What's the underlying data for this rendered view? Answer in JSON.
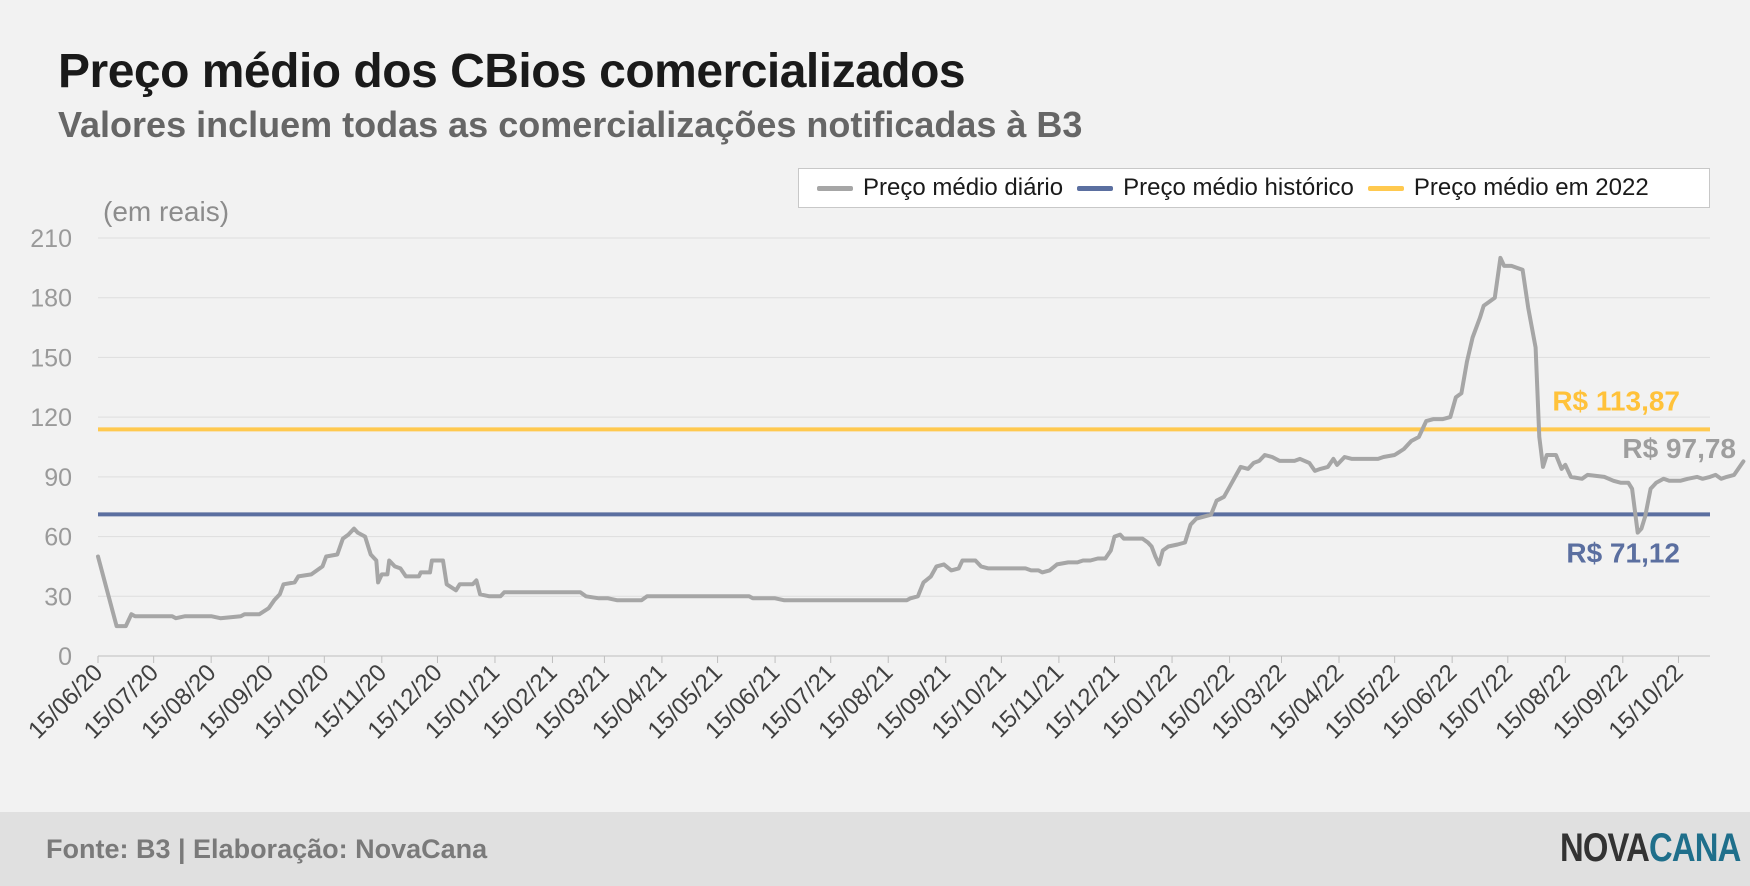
{
  "header": {
    "title": "Preço médio dos CBios comercializados",
    "subtitle": "Valores incluem todas as comercializações notificadas à B3"
  },
  "units_label": "(em reais)",
  "footer": {
    "source": "Fonte: B3 | Elaboração: NovaCana",
    "logo_part1": "NOVA",
    "logo_part2": "CANA"
  },
  "colors": {
    "daily": "#a6a6a6",
    "historical": "#5b6fa0",
    "year2022": "#ffc94f",
    "logo_dark": "#333333",
    "logo_teal": "#1f6f8b"
  },
  "chart_data": {
    "type": "line",
    "title": "Preço médio dos CBios comercializados",
    "subtitle": "Valores incluem todas as comercializações notificadas à B3",
    "ylabel": "(em reais)",
    "xlabel": "",
    "ylim": [
      0,
      210
    ],
    "yticks": [
      0,
      30,
      60,
      90,
      120,
      150,
      180,
      210
    ],
    "xlim": [
      "2020-06-15",
      "2022-11-01"
    ],
    "xtick_labels": [
      "15/06/20",
      "15/07/20",
      "15/08/20",
      "15/09/20",
      "15/10/20",
      "15/11/20",
      "15/12/20",
      "15/01/21",
      "15/02/21",
      "15/03/21",
      "15/04/21",
      "15/05/21",
      "15/06/21",
      "15/07/21",
      "15/08/21",
      "15/09/21",
      "15/10/21",
      "15/11/21",
      "15/12/21",
      "15/01/22",
      "15/02/22",
      "15/03/22",
      "15/04/22",
      "15/05/22",
      "15/06/22",
      "15/07/22",
      "15/08/22",
      "15/09/22",
      "15/10/22"
    ],
    "grid": true,
    "legend_placement": "top-right",
    "legend": [
      "Preço médio diário",
      "Preço médio histórico",
      "Preço médio em 2022"
    ],
    "series": [
      {
        "name": "Preço médio diário",
        "points": [
          [
            "2020-06-15",
            50
          ],
          [
            "2020-06-25",
            15
          ],
          [
            "2020-06-30",
            15
          ],
          [
            "2020-07-03",
            21
          ],
          [
            "2020-07-05",
            20
          ],
          [
            "2020-07-25",
            20
          ],
          [
            "2020-07-27",
            19
          ],
          [
            "2020-08-01",
            20
          ],
          [
            "2020-08-08",
            20
          ],
          [
            "2020-08-15",
            20
          ],
          [
            "2020-08-20",
            19
          ],
          [
            "2020-08-31",
            20
          ],
          [
            "2020-09-02",
            21
          ],
          [
            "2020-09-10",
            21
          ],
          [
            "2020-09-15",
            24
          ],
          [
            "2020-09-18",
            28
          ],
          [
            "2020-09-21",
            31
          ],
          [
            "2020-09-23",
            36
          ],
          [
            "2020-09-29",
            37
          ],
          [
            "2020-10-01",
            40
          ],
          [
            "2020-10-08",
            41
          ],
          [
            "2020-10-14",
            45
          ],
          [
            "2020-10-16",
            50
          ],
          [
            "2020-10-22",
            51
          ],
          [
            "2020-10-25",
            59
          ],
          [
            "2020-10-28",
            61
          ],
          [
            "2020-10-31",
            64
          ],
          [
            "2020-11-02",
            62
          ],
          [
            "2020-11-06",
            60
          ],
          [
            "2020-11-09",
            51
          ],
          [
            "2020-11-12",
            48
          ],
          [
            "2020-11-13",
            37
          ],
          [
            "2020-11-15",
            41
          ],
          [
            "2020-11-18",
            41
          ],
          [
            "2020-11-19",
            48
          ],
          [
            "2020-11-22",
            45
          ],
          [
            "2020-11-25",
            44
          ],
          [
            "2020-11-28",
            40
          ],
          [
            "2020-12-05",
            40
          ],
          [
            "2020-12-06",
            42
          ],
          [
            "2020-12-11",
            42
          ],
          [
            "2020-12-12",
            48
          ],
          [
            "2020-12-18",
            48
          ],
          [
            "2020-12-20",
            36
          ],
          [
            "2020-12-25",
            33
          ],
          [
            "2020-12-27",
            36
          ],
          [
            "2021-01-03",
            36
          ],
          [
            "2021-01-05",
            38
          ],
          [
            "2021-01-07",
            31
          ],
          [
            "2021-01-12",
            30
          ],
          [
            "2021-01-18",
            30
          ],
          [
            "2021-01-20",
            32
          ],
          [
            "2021-03-02",
            32
          ],
          [
            "2021-03-05",
            30
          ],
          [
            "2021-03-12",
            29
          ],
          [
            "2021-03-17",
            29
          ],
          [
            "2021-03-22",
            28
          ],
          [
            "2021-04-04",
            28
          ],
          [
            "2021-04-07",
            30
          ],
          [
            "2021-04-10",
            30
          ],
          [
            "2021-04-17",
            30
          ],
          [
            "2021-04-20",
            30
          ],
          [
            "2021-05-01",
            30
          ],
          [
            "2021-05-05",
            30
          ],
          [
            "2021-06-01",
            30
          ],
          [
            "2021-06-03",
            29
          ],
          [
            "2021-06-15",
            29
          ],
          [
            "2021-06-20",
            28
          ],
          [
            "2021-08-25",
            28
          ],
          [
            "2021-08-27",
            29
          ],
          [
            "2021-08-31",
            30
          ],
          [
            "2021-09-03",
            37
          ],
          [
            "2021-09-07",
            40
          ],
          [
            "2021-09-10",
            45
          ],
          [
            "2021-09-14",
            46
          ],
          [
            "2021-09-18",
            43
          ],
          [
            "2021-09-22",
            44
          ],
          [
            "2021-09-24",
            48
          ],
          [
            "2021-10-01",
            48
          ],
          [
            "2021-10-04",
            45
          ],
          [
            "2021-10-08",
            44
          ],
          [
            "2021-10-28",
            44
          ],
          [
            "2021-10-31",
            43
          ],
          [
            "2021-11-04",
            43
          ],
          [
            "2021-11-06",
            42
          ],
          [
            "2021-11-10",
            43
          ],
          [
            "2021-11-14",
            46
          ],
          [
            "2021-11-20",
            47
          ],
          [
            "2021-11-25",
            47
          ],
          [
            "2021-11-28",
            48
          ],
          [
            "2021-12-02",
            48
          ],
          [
            "2021-12-06",
            49
          ],
          [
            "2021-12-10",
            49
          ],
          [
            "2021-12-13",
            53
          ],
          [
            "2021-12-15",
            60
          ],
          [
            "2021-12-18",
            61
          ],
          [
            "2021-12-20",
            59
          ],
          [
            "2021-12-25",
            59
          ],
          [
            "2021-12-30",
            59
          ],
          [
            "2022-01-02",
            57
          ],
          [
            "2022-01-04",
            55
          ],
          [
            "2022-01-06",
            50
          ],
          [
            "2022-01-08",
            46
          ],
          [
            "2022-01-10",
            53
          ],
          [
            "2022-01-13",
            55
          ],
          [
            "2022-01-18",
            56
          ],
          [
            "2022-01-22",
            57
          ],
          [
            "2022-01-25",
            66
          ],
          [
            "2022-01-28",
            69
          ],
          [
            "2022-02-01",
            70
          ],
          [
            "2022-02-05",
            71
          ],
          [
            "2022-02-08",
            78
          ],
          [
            "2022-02-12",
            80
          ],
          [
            "2022-02-15",
            85
          ],
          [
            "2022-02-18",
            90
          ],
          [
            "2022-02-21",
            95
          ],
          [
            "2022-02-25",
            94
          ],
          [
            "2022-02-28",
            97
          ],
          [
            "2022-03-03",
            98
          ],
          [
            "2022-03-06",
            101
          ],
          [
            "2022-03-10",
            100
          ],
          [
            "2022-03-14",
            98
          ],
          [
            "2022-03-22",
            98
          ],
          [
            "2022-03-25",
            99
          ],
          [
            "2022-03-30",
            97
          ],
          [
            "2022-04-02",
            93
          ],
          [
            "2022-04-05",
            94
          ],
          [
            "2022-04-09",
            95
          ],
          [
            "2022-04-12",
            99
          ],
          [
            "2022-04-14",
            96
          ],
          [
            "2022-04-18",
            100
          ],
          [
            "2022-04-22",
            99
          ],
          [
            "2022-04-28",
            99
          ],
          [
            "2022-05-06",
            99
          ],
          [
            "2022-05-09",
            100
          ],
          [
            "2022-05-15",
            101
          ],
          [
            "2022-05-20",
            104
          ],
          [
            "2022-05-24",
            108
          ],
          [
            "2022-05-28",
            110
          ],
          [
            "2022-06-01",
            118
          ],
          [
            "2022-06-05",
            119
          ],
          [
            "2022-06-10",
            119
          ],
          [
            "2022-06-14",
            120
          ],
          [
            "2022-06-17",
            130
          ],
          [
            "2022-06-20",
            132
          ],
          [
            "2022-06-23",
            148
          ],
          [
            "2022-06-26",
            160
          ],
          [
            "2022-06-30",
            170
          ],
          [
            "2022-07-02",
            176
          ],
          [
            "2022-07-05",
            178
          ],
          [
            "2022-07-08",
            180
          ],
          [
            "2022-07-11",
            200
          ],
          [
            "2022-07-13",
            196
          ],
          [
            "2022-07-17",
            196
          ],
          [
            "2022-07-20",
            195
          ],
          [
            "2022-07-23",
            194
          ],
          [
            "2022-07-26",
            175
          ],
          [
            "2022-07-28",
            165
          ],
          [
            "2022-07-30",
            155
          ],
          [
            "2022-08-01",
            110
          ],
          [
            "2022-08-03",
            95
          ],
          [
            "2022-08-05",
            101
          ],
          [
            "2022-08-10",
            101
          ],
          [
            "2022-08-13",
            94
          ],
          [
            "2022-08-15",
            96
          ],
          [
            "2022-08-18",
            90
          ],
          [
            "2022-08-24",
            89
          ],
          [
            "2022-08-27",
            91
          ],
          [
            "2022-09-05",
            90
          ],
          [
            "2022-09-10",
            88
          ],
          [
            "2022-09-14",
            87
          ],
          [
            "2022-09-18",
            87
          ],
          [
            "2022-09-20",
            84
          ],
          [
            "2022-09-23",
            62
          ],
          [
            "2022-09-25",
            64
          ],
          [
            "2022-09-27",
            70
          ],
          [
            "2022-09-30",
            84
          ],
          [
            "2022-10-03",
            87
          ],
          [
            "2022-10-07",
            89
          ],
          [
            "2022-10-10",
            88
          ],
          [
            "2022-10-16",
            88
          ],
          [
            "2022-10-20",
            89
          ],
          [
            "2022-10-25",
            90
          ],
          [
            "2022-10-28",
            89
          ],
          [
            "2022-11-01",
            90
          ],
          [
            "2022-11-04",
            91
          ],
          [
            "2022-11-07",
            89
          ],
          [
            "2022-11-10",
            90
          ],
          [
            "2022-11-14",
            91
          ],
          [
            "2022-11-19",
            97.78
          ]
        ]
      },
      {
        "name": "Preço médio histórico",
        "value": 71.12
      },
      {
        "name": "Preço médio em 2022",
        "value": 113.87
      }
    ],
    "annotations": {
      "year2022": "R$ 113,87",
      "historical": "R$ 71,12",
      "last": "R$ 97,78"
    }
  }
}
